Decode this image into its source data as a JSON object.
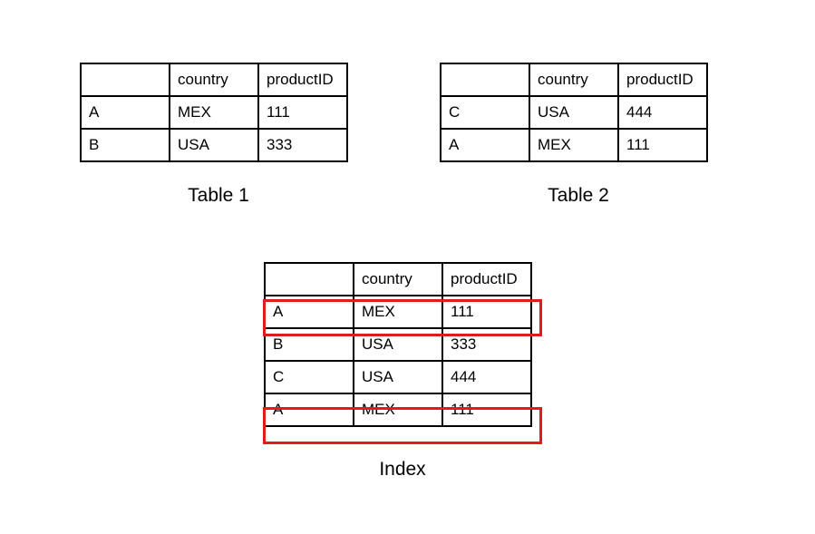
{
  "table1": {
    "caption": "Table 1",
    "header": [
      "",
      "country",
      "productID"
    ],
    "rows": [
      [
        "A",
        "MEX",
        "111"
      ],
      [
        "B",
        "USA",
        "333"
      ]
    ]
  },
  "table2": {
    "caption": "Table 2",
    "header": [
      "",
      "country",
      "productID"
    ],
    "rows": [
      [
        "C",
        "USA",
        "444"
      ],
      [
        "A",
        "MEX",
        "111"
      ]
    ]
  },
  "index": {
    "caption": "Index",
    "header": [
      "",
      "country",
      "productID"
    ],
    "rows": [
      [
        "A",
        "MEX",
        "111"
      ],
      [
        "B",
        "USA",
        "333"
      ],
      [
        "C",
        "USA",
        "444"
      ],
      [
        "A",
        "MEX",
        "111"
      ]
    ],
    "highlight_color": "#e11a1a"
  }
}
